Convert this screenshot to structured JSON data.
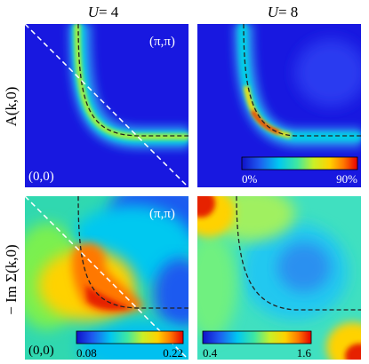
{
  "chart_data": {
    "type": "heatmap",
    "columns": [
      {
        "label_symbol": "U",
        "label_value": "= 4"
      },
      {
        "label_symbol": "U",
        "label_value": "= 8"
      }
    ],
    "rows": [
      {
        "label": "A(k,0)"
      },
      {
        "label": "− Im Σ(k,0)"
      }
    ],
    "corner_labels": {
      "origin": "(0,0)",
      "far": "(π,π)"
    },
    "panels": [
      {
        "row": 0,
        "col": 0,
        "origin_label": true,
        "far_label": true,
        "diagonal": true,
        "description_colors": [
          "#1e1ee6",
          "#00d2e6",
          "#ffe600",
          "#e60000"
        ]
      },
      {
        "row": 0,
        "col": 1,
        "colorbar": {
          "min_label": "0%",
          "max_label": "90%"
        }
      },
      {
        "row": 1,
        "col": 0,
        "origin_label": true,
        "far_label": true,
        "diagonal": true,
        "colorbar": {
          "min_label": "0.08",
          "max_label": "0.22"
        }
      },
      {
        "row": 1,
        "col": 1,
        "colorbar": {
          "min_label": "0.4",
          "max_label": "1.6"
        }
      }
    ],
    "colormap": [
      "#1010c8",
      "#1e5af0",
      "#00c8f0",
      "#40e8a0",
      "#c8f028",
      "#ffd200",
      "#ff7800",
      "#e60000"
    ],
    "legend_placement": "inside-bottom"
  }
}
